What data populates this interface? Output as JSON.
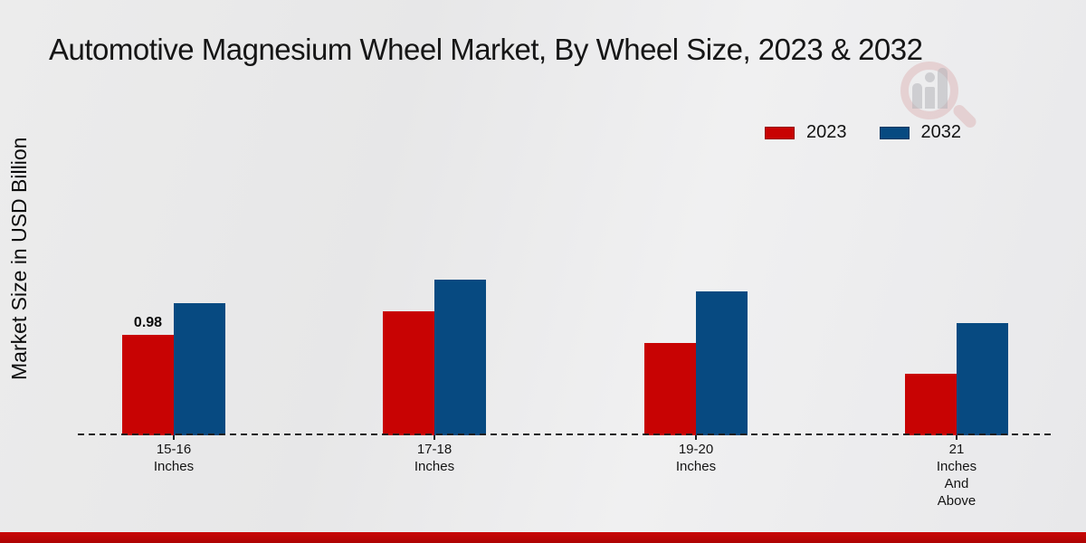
{
  "chart_data": {
    "type": "bar",
    "title": "Automotive Magnesium Wheel Market, By Wheel Size, 2023 & 2032",
    "xlabel": "",
    "ylabel": "Market Size in USD Billion",
    "categories": [
      "15-16 Inches",
      "17-18 Inches",
      "19-20 Inches",
      "21 Inches And Above"
    ],
    "category_lines": [
      [
        "15-16",
        "Inches"
      ],
      [
        "17-18",
        "Inches"
      ],
      [
        "19-20",
        "Inches"
      ],
      [
        "21",
        "Inches",
        "And",
        "Above"
      ]
    ],
    "series": [
      {
        "name": "2023",
        "color": "#c80303",
        "values": [
          0.98,
          1.21,
          0.9,
          0.6
        ]
      },
      {
        "name": "2032",
        "color": "#074a81",
        "values": [
          1.29,
          1.52,
          1.41,
          1.1
        ]
      }
    ],
    "data_labels": [
      {
        "series_index": 0,
        "category_index": 0,
        "text": "0.98"
      }
    ],
    "ylim": [
      0,
      3.4
    ],
    "grid": false,
    "legend_position": "top-right",
    "baseline_style": "dashed"
  },
  "colors": {
    "accent_red": "#c80303",
    "accent_blue": "#074a81",
    "footer_red": "#c20505",
    "background": "#e9e9ea",
    "text": "#161616"
  },
  "icons": {
    "watermark": "magnifier-bar-chart-logo-icon"
  }
}
